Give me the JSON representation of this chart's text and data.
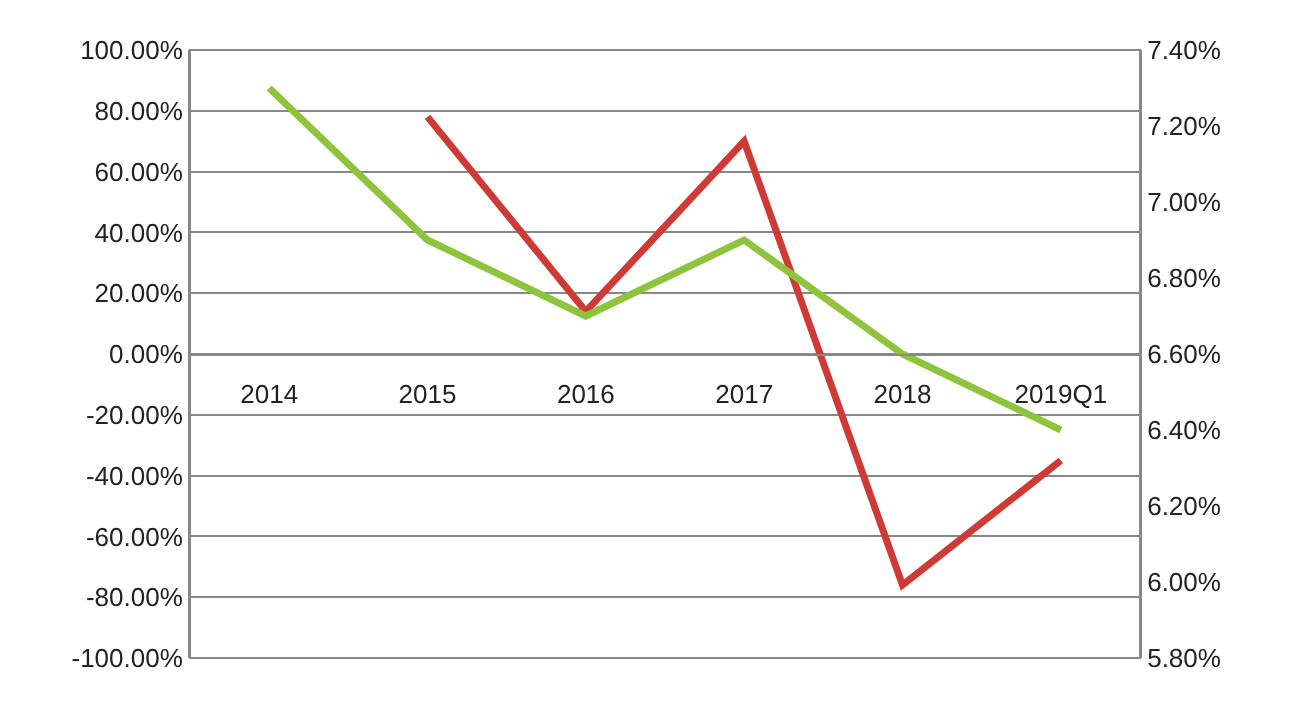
{
  "chart_data": {
    "type": "line",
    "categories": [
      "2014",
      "2015",
      "2016",
      "2017",
      "2018",
      "2019Q1"
    ],
    "series": [
      {
        "color": "#d03a35",
        "values": [
          null,
          78,
          14,
          70,
          -76,
          -35
        ]
      },
      {
        "color": "#8dc43c",
        "axis": "y2",
        "values": [
          7.3,
          6.9,
          6.7,
          6.9,
          6.6,
          6.4
        ]
      }
    ],
    "ylim": [
      -100,
      100
    ],
    "yticks": [
      {
        "value": -100,
        "label": "-100.00%"
      },
      {
        "value": -80,
        "label": "-80.00%"
      },
      {
        "value": -60,
        "label": "-60.00%"
      },
      {
        "value": -40,
        "label": "-40.00%"
      },
      {
        "value": -20,
        "label": "-20.00%"
      },
      {
        "value": 0,
        "label": "0.00%"
      },
      {
        "value": 20,
        "label": "20.00%"
      },
      {
        "value": 40,
        "label": "40.00%"
      },
      {
        "value": 60,
        "label": "60.00%"
      },
      {
        "value": 80,
        "label": "80.00%"
      },
      {
        "value": 100,
        "label": "100.00%"
      }
    ],
    "y2lim": [
      5.8,
      7.4
    ],
    "y2ticks": [
      {
        "value": 5.8,
        "label": "5.80%"
      },
      {
        "value": 6.0,
        "label": "6.00%"
      },
      {
        "value": 6.2,
        "label": "6.20%"
      },
      {
        "value": 6.4,
        "label": "6.40%"
      },
      {
        "value": 6.6,
        "label": "6.60%"
      },
      {
        "value": 6.8,
        "label": "6.80%"
      },
      {
        "value": 7.0,
        "label": "7.00%"
      },
      {
        "value": 7.2,
        "label": "7.20%"
      },
      {
        "value": 7.4,
        "label": "7.40%"
      }
    ],
    "grid": "y",
    "marker": "none",
    "line_style": "solid"
  }
}
